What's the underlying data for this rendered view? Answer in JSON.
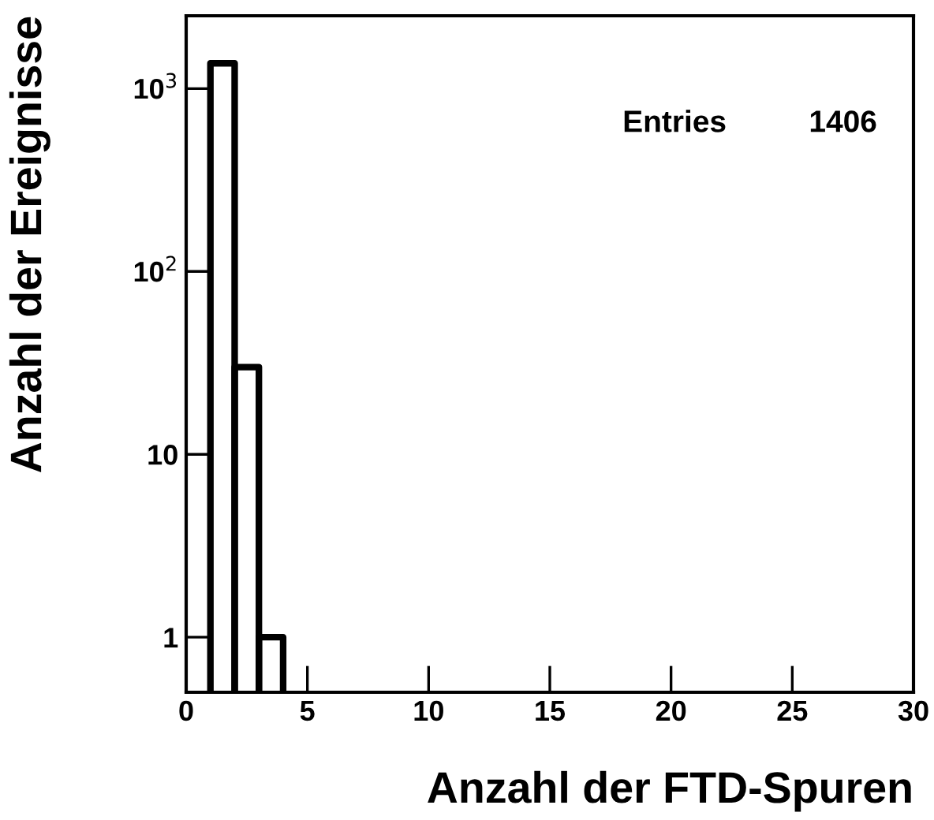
{
  "chart_data": {
    "type": "histogram",
    "xlabel": "Anzahl der FTD-Spuren",
    "ylabel": "Anzahl der Ereignisse",
    "bins": [
      1,
      2,
      3,
      4
    ],
    "values": [
      1375,
      30,
      1
    ],
    "color": "#000000",
    "xlim": [
      0,
      30
    ],
    "xticks": [
      0,
      5,
      10,
      15,
      20,
      25,
      30
    ],
    "ylim": [
      0.5,
      2500
    ],
    "yticks": [
      1,
      10,
      {
        "value": 100,
        "label": "10$^{2}$"
      },
      {
        "value": 1000,
        "label": "10$^{3}$"
      }
    ],
    "log": "y",
    "grid": false,
    "legend": false,
    "annotations": [
      "Entries",
      "1406"
    ]
  }
}
